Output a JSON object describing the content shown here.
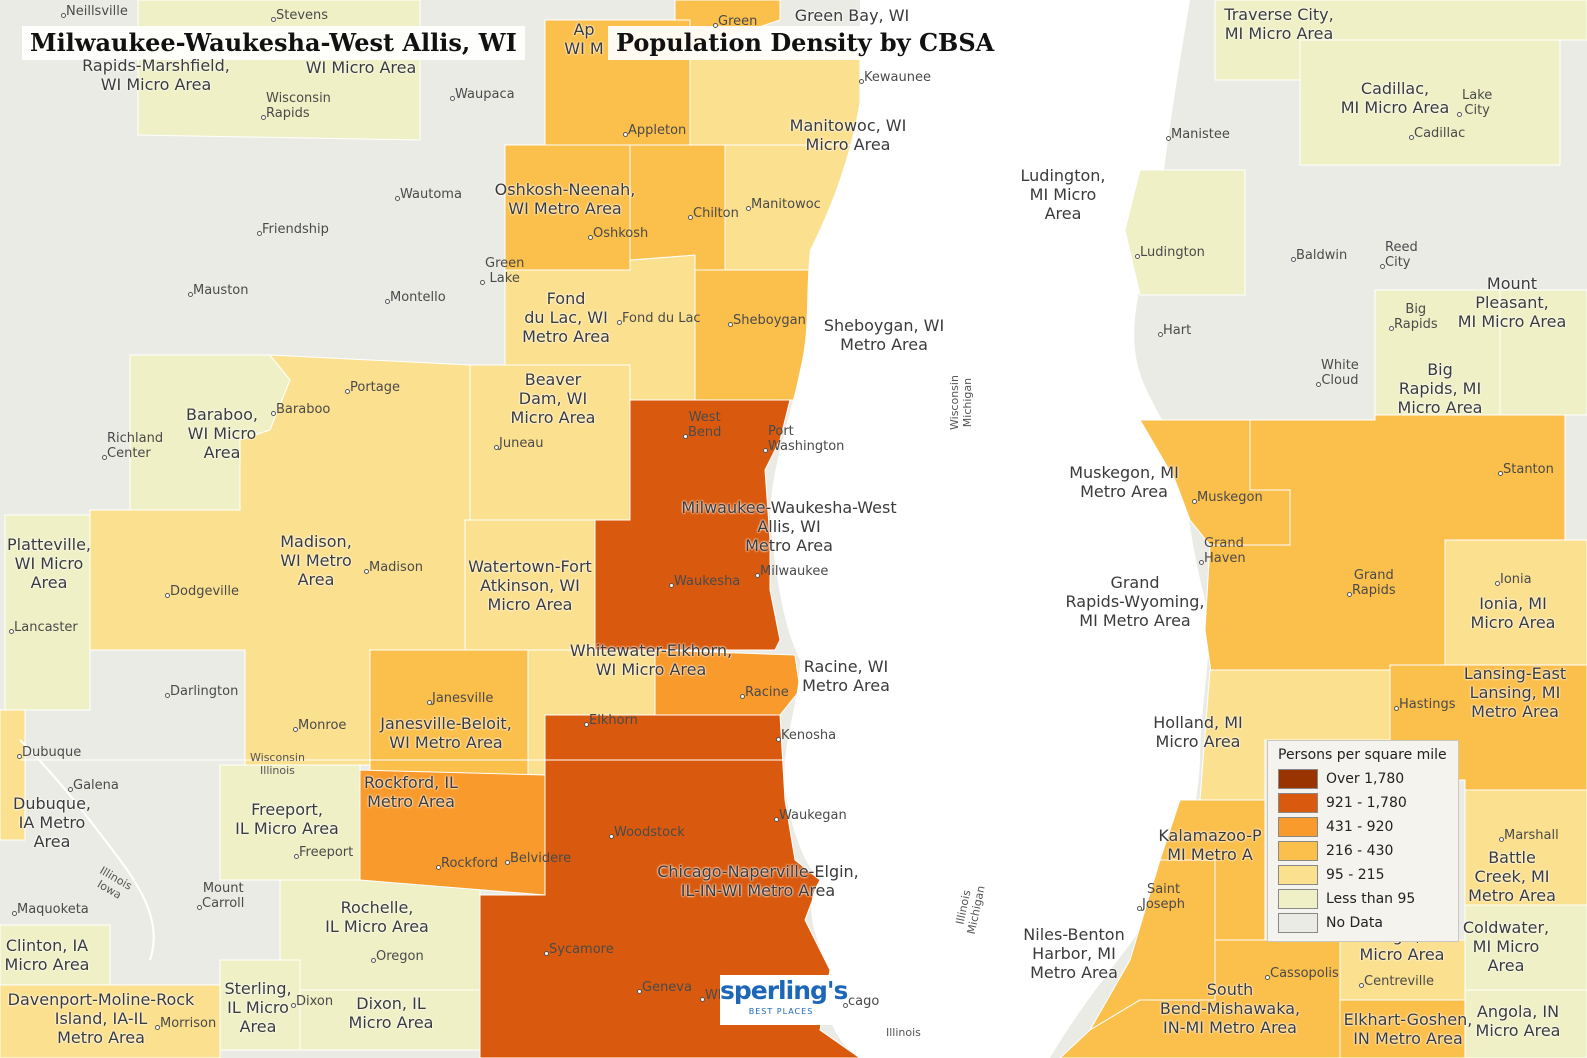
{
  "title": "Milwaukee-Waukesha-West Allis, WI",
  "subtitle": "Population Density by CBSA",
  "legend": {
    "title": "Persons per square mile",
    "items": [
      {
        "label": "Over 1,780",
        "color": "#993300"
      },
      {
        "label": "921 - 1,780",
        "color": "#d95a0e"
      },
      {
        "label": "431 - 920",
        "color": "#f89a2c"
      },
      {
        "label": "216 - 430",
        "color": "#fbbf4c"
      },
      {
        "label": "95 - 215",
        "color": "#fbe08f"
      },
      {
        "label": "Less than 95",
        "color": "#eff0c6"
      },
      {
        "label": "No Data",
        "color": "#ebebe6"
      }
    ]
  },
  "logo": {
    "brand": "sperling's",
    "tagline": "BEST PLACES"
  },
  "areas": [
    {
      "name": "Milwaukee-Waukesha-West\nAllis, WI\nMetro Area",
      "density_class": "921 - 1,780"
    },
    {
      "name": "Chicago-Naperville-Elgin,\nIL-IN-WI Metro Area",
      "density_class": "921 - 1,780"
    },
    {
      "name": "Racine, WI\nMetro Area",
      "density_class": "431 - 920"
    },
    {
      "name": "Rockford, IL\nMetro Area",
      "density_class": "431 - 920"
    },
    {
      "name": "Sheboygan, WI\nMetro Area",
      "density_class": "216 - 430"
    },
    {
      "name": "Oshkosh-Neenah,\nWI Metro Area",
      "density_class": "216 - 430"
    },
    {
      "name": "Janesville-Beloit,\nWI Metro Area",
      "density_class": "216 - 430"
    },
    {
      "name": "Muskegon, MI\nMetro Area",
      "density_class": "216 - 430"
    },
    {
      "name": "Grand\nRapids-Wyoming,\nMI Metro Area",
      "density_class": "216 - 430"
    },
    {
      "name": "Kalamazoo-P\nMI Metro A",
      "density_class": "216 - 430"
    },
    {
      "name": "South\nBend-Mishawaka,\nIN-MI Metro Area",
      "density_class": "216 - 430"
    },
    {
      "name": "Niles-Benton\nHarbor, MI\nMetro Area",
      "density_class": "216 - 430"
    },
    {
      "name": "Lansing-East\nLansing, MI\nMetro Area",
      "density_class": "216 - 430"
    },
    {
      "name": "Elkhart-Goshen,\nIN Metro Area",
      "density_class": "216 - 430"
    },
    {
      "name": "Manitowoc, WI\nMicro Area",
      "density_class": "95 - 215"
    },
    {
      "name": "Fond\ndu Lac, WI\nMetro Area",
      "density_class": "95 - 215"
    },
    {
      "name": "Beaver\nDam, WI\nMicro Area",
      "density_class": "95 - 215"
    },
    {
      "name": "Madison,\nWI Metro\nArea",
      "density_class": "95 - 215"
    },
    {
      "name": "Watertown-Fort\nAtkinson, WI\nMicro Area",
      "density_class": "95 - 215"
    },
    {
      "name": "Whitewater-Elkhorn,\nWI Micro Area",
      "density_class": "95 - 215"
    },
    {
      "name": "Dubuque,\nIA Metro\nArea",
      "density_class": "95 - 215"
    },
    {
      "name": "Holland, MI\nMicro Area",
      "density_class": "95 - 215"
    },
    {
      "name": "Battle\nCreek, MI\nMetro Area",
      "density_class": "95 - 215"
    },
    {
      "name": "Ionia, MI\nMicro Area",
      "density_class": "95 - 215"
    },
    {
      "name": "Baraboo,\nWI Micro\nArea",
      "density_class": "Less than 95"
    },
    {
      "name": "Platteville,\nWI Micro\nArea",
      "density_class": "Less than 95"
    },
    {
      "name": "Freeport,\nIL Micro Area",
      "density_class": "Less than 95"
    },
    {
      "name": "Rochelle,\nIL Micro Area",
      "density_class": "Less than 95"
    },
    {
      "name": "Sterling,\nIL Micro\nArea",
      "density_class": "Less than 95"
    },
    {
      "name": "Dixon, IL\nMicro Area",
      "density_class": "Less than 95"
    },
    {
      "name": "Clinton, IA\nMicro Area",
      "density_class": "Less than 95"
    },
    {
      "name": "Davenport-Moline-Rock\nIsland, IA-IL\nMetro Area",
      "density_class": "95 - 215"
    },
    {
      "name": "Rapids-Marshfield,\nWI Micro Area",
      "density_class": "Less than 95"
    },
    {
      "name": "WI Micro Area",
      "density_class": "Less than 95"
    },
    {
      "name": "Ludington,\nMI Micro\nArea",
      "density_class": "Less than 95"
    },
    {
      "name": "Traverse City,\nMI Micro Area",
      "density_class": "Less than 95"
    },
    {
      "name": "Cadillac,\nMI Micro Area",
      "density_class": "Less than 95"
    },
    {
      "name": "Big\nRapids, MI\nMicro Area",
      "density_class": "Less than 95"
    },
    {
      "name": "Mount\nPleasant,\nMI Micro Area",
      "density_class": "Less than 95"
    },
    {
      "name": "Coldwater,\nMI Micro\nArea",
      "density_class": "Less than 95"
    },
    {
      "name": "Angola, IN\nMicro Area",
      "density_class": "Less than 95"
    },
    {
      "name": "Sturgis, MI\nMicro Area",
      "density_class": "95 - 215"
    },
    {
      "name": "Green Bay, WI",
      "density_class": "216 - 430"
    },
    {
      "name": "Ap\nWI M",
      "density_class": "216 - 430"
    }
  ],
  "cities": [
    "Neillsville",
    "Stevens",
    "Wisconsin\nRapids",
    "Waupaca",
    "Green",
    "Kewaunee",
    "Appleton",
    "Wautoma",
    "Friendship",
    "Oshkosh",
    "Chilton",
    "Manitowoc",
    "Mauston",
    "Montello",
    "Green\nLake",
    "Fond du Lac",
    "Sheboygan",
    "Portage",
    "Baraboo",
    "Richland\nCenter",
    "Juneau",
    "West\nBend",
    "Port\nWashington",
    "Madison",
    "Dodgeville",
    "Waukesha",
    "Milwaukee",
    "Lancaster",
    "Darlington",
    "Janesville",
    "Elkhorn",
    "Racine",
    "Kenosha",
    "Monroe",
    "Dubuque",
    "Galena",
    "Waukegan",
    "Woodstock",
    "Freeport",
    "Rockford",
    "Belvidere",
    "Mount\nCarroll",
    "Maquoketa",
    "Oregon",
    "Sycamore",
    "Geneva",
    "Wh",
    "cago",
    "Dixon",
    "Morrison",
    "Manistee",
    "Lake\nCity",
    "Cadillac",
    "Ludington",
    "Baldwin",
    "Reed\nCity",
    "Hart",
    "Big\nRapids",
    "White\nCloud",
    "Stanton",
    "Muskegon",
    "Grand\nHaven",
    "Grand\nRapids",
    "Ionia",
    "Hastings",
    "Marshall",
    "Saint\nJoseph",
    "Cassopolis",
    "Centreville"
  ],
  "state_labels": [
    "Wisconsin\nMichigan",
    "Illinois\nMichigan",
    "Wisconsin\nIllinois",
    "Illinois\nIowa",
    "Illinois"
  ]
}
